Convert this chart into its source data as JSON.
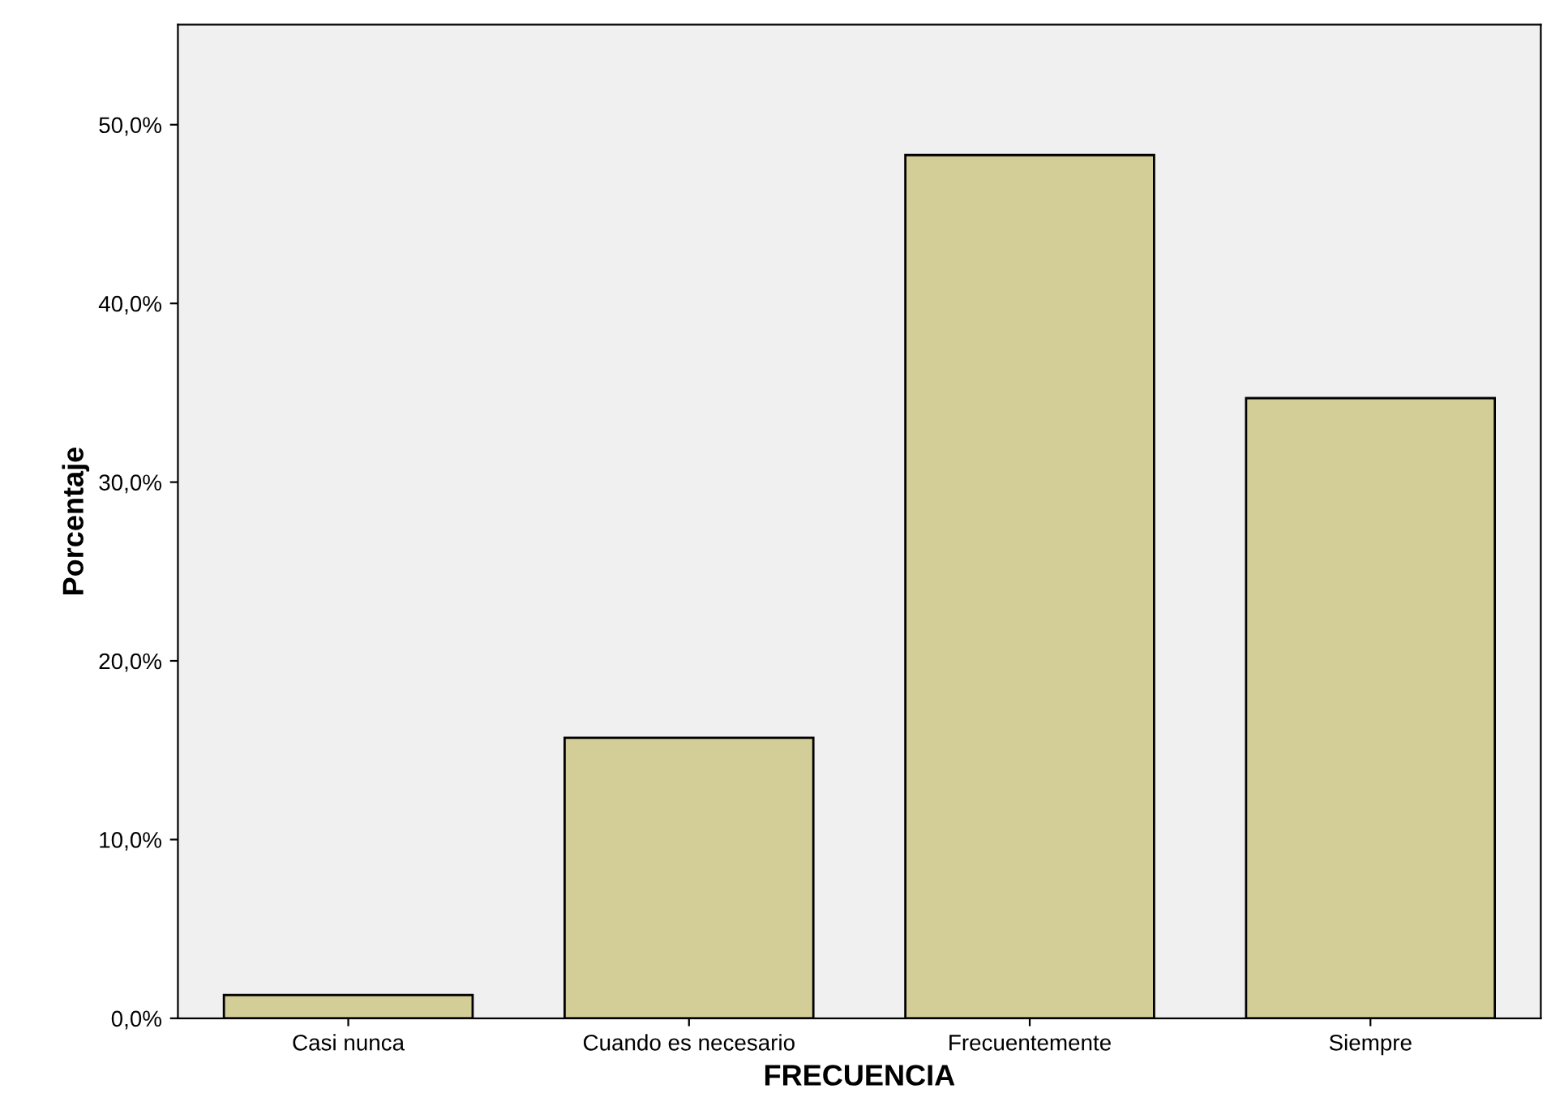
{
  "chart_data": {
    "type": "bar",
    "xlabel": "FRECUENCIA",
    "ylabel": "Porcentaje",
    "categories": [
      "Casi nunca",
      "Cuando es necesario",
      "Frecuentemente",
      "Siempre"
    ],
    "values": [
      1.3,
      15.7,
      48.3,
      34.7
    ],
    "color": "#d3cd98",
    "ylim": [
      0,
      55.6
    ],
    "yticks": [
      {
        "value": 0,
        "label": "0,0%"
      },
      {
        "value": 10,
        "label": "10,0%"
      },
      {
        "value": 20,
        "label": "20,0%"
      },
      {
        "value": 30,
        "label": "30,0%"
      },
      {
        "value": 40,
        "label": "40,0%"
      },
      {
        "value": 50,
        "label": "50,0%"
      }
    ],
    "grid": false,
    "legend": false
  }
}
